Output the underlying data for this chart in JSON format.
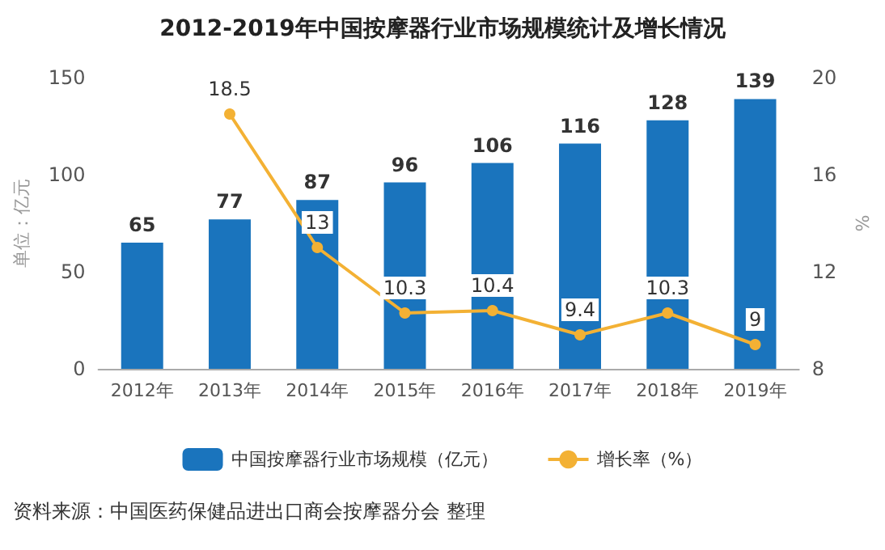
{
  "chart_data": {
    "type": "bar",
    "title": "2012-2019年中国按摩器行业市场规模统计及增长情况",
    "ylabel": "单位：亿元",
    "y2label": "%",
    "categories": [
      "2012年",
      "2013年",
      "2014年",
      "2015年",
      "2016年",
      "2017年",
      "2018年",
      "2019年"
    ],
    "series": [
      {
        "name": "中国按摩器行业市场规模（亿元）",
        "color": "#1a74bd",
        "values": [
          65,
          77,
          87,
          96,
          106,
          116,
          128,
          139
        ]
      },
      {
        "name": "增长率（%）",
        "type": "line",
        "axis": "y2",
        "color": "#f3b134",
        "values": [
          null,
          18.5,
          13,
          10.3,
          10.4,
          9.4,
          10.3,
          9
        ]
      }
    ],
    "ylim": [
      0,
      150
    ],
    "yticks": [
      0,
      50,
      100,
      150
    ],
    "y2lim": [
      8,
      20
    ],
    "y2ticks": [
      8,
      12,
      16,
      20
    ],
    "data_labels": true,
    "legend": "bottom",
    "marker": "circle",
    "grid": false,
    "annotations": [
      "资料来源：中国医药保健品进出口商会按摩器分会 整理"
    ]
  }
}
